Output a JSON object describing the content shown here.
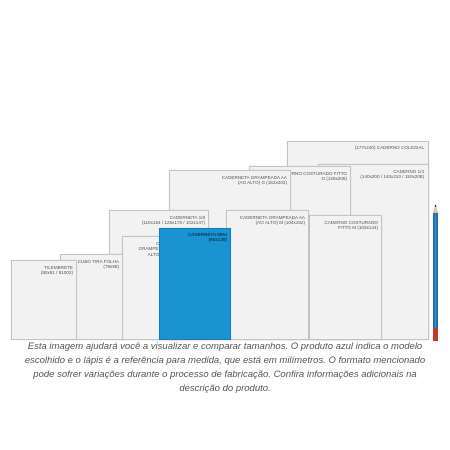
{
  "items": {
    "tilembrete": {
      "name": "TILEMBRETE",
      "dims": "(80x91 / 91002)"
    },
    "cubo_tira_folha": {
      "name": "CUBO TIRA FOLHA",
      "dims": "(79x98)"
    },
    "caderneta_18": {
      "name": "CADERNETA 1/8",
      "dims": "(110x154 / 125x176 / 102x147)"
    },
    "caderneta_grampeada_p": {
      "name": "CADERNETA GRAMPEADA AA (AO ALTO) P (76x118)"
    },
    "caderneta_mini": {
      "name": "CADERNETA MINI",
      "dims": "(90x138)"
    },
    "caderneta_grampeada_g": {
      "name": "CADERNETA GRAMPEADA AA (AO ALTO) G (152x203)"
    },
    "caderneta_grampeada_m": {
      "name": "CADERNETA GRAMPEADA AA (AO ALTO) M (104x152)"
    },
    "caderno_costurado_g": {
      "name": "CADERNO COSTURADO FITTO G (128x208)"
    },
    "caderno_costurado_m": {
      "name": "CADERNO COSTURADO FITTO M (103x144)"
    },
    "caderno_14": {
      "name": "CADERNO 1/4",
      "dims": "(140x200 / 140x210 / 150x208)"
    },
    "caderno_colegial": {
      "name": "(177x240) CADERNO COLEGIAL"
    }
  },
  "caption": "Esta imagem ajudará você a visualizar e comparar tamanhos. O produto azul indica o modelo escolhido e o lápis é a referência para medida, que está em milímetros. O formato mencionado pode sofrer variações durante o processo de fabricação. Confira informações adicionais na descrição do produto.",
  "colors": {
    "highlight": "#1a93d1",
    "sheet": "#f2f2f2",
    "pencil": "#1f6fb0",
    "pencil_tip": "#c0392b"
  }
}
